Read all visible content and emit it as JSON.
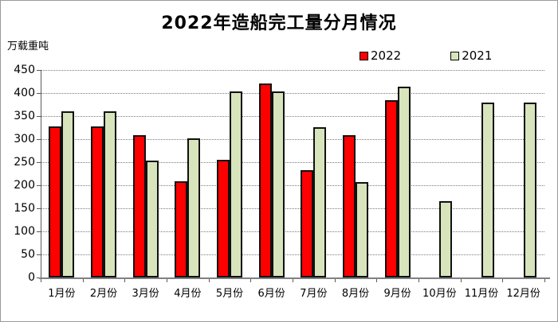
{
  "chart_data": {
    "type": "bar",
    "title": "2022年造船完工量分月情况",
    "unit_label": "万载重吨",
    "categories": [
      "1月份",
      "2月份",
      "3月份",
      "4月份",
      "5月份",
      "6月份",
      "7月份",
      "8月份",
      "9月份",
      "10月份",
      "11月份",
      "12月份"
    ],
    "series": [
      {
        "name": "2022",
        "color": "#ff0000",
        "values": [
          327,
          327,
          308,
          209,
          255,
          421,
          233,
          308,
          385,
          null,
          null,
          null
        ]
      },
      {
        "name": "2021",
        "color": "#d8e4bc",
        "values": [
          361,
          361,
          254,
          301,
          404,
          404,
          326,
          207,
          414,
          166,
          380,
          380
        ]
      }
    ],
    "ylabel": "",
    "xlabel": "",
    "ylim": [
      0,
      450
    ],
    "ytick_step": 50,
    "grid": "horizontal-dotted",
    "gridline_color": "#7a7a7a",
    "bar_border_color": "#111111",
    "legend_position": "top-right"
  }
}
